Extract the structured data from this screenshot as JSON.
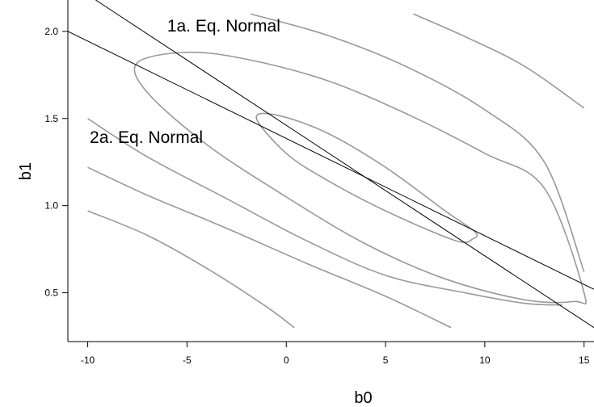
{
  "chart_data": {
    "type": "line",
    "title": "",
    "xlabel": "b0",
    "ylabel": "b1",
    "xlim": [
      -11,
      15.5
    ],
    "ylim": [
      0.22,
      2.18
    ],
    "xticks": [
      -10,
      -5,
      0,
      5,
      10,
      15
    ],
    "yticks": [
      0.5,
      1.0,
      1.5,
      2.0
    ],
    "xtick_labels": [
      "-10",
      "-5",
      "0",
      "5",
      "10",
      "15"
    ],
    "ytick_labels": [
      "0.5",
      "1.0",
      "1.5",
      "2.0"
    ],
    "grid": false,
    "annotations": [
      {
        "text": "1a. Eq. Normal",
        "x": -6.0,
        "y": 2.0
      },
      {
        "text": "2a. Eq. Normal",
        "x": -9.9,
        "y": 1.36
      }
    ],
    "lines": [
      {
        "id": "normal-1a",
        "x": [
          -9.6,
          15.5
        ],
        "y": [
          2.18,
          0.3
        ]
      },
      {
        "id": "normal-2a",
        "x": [
          -11.0,
          15.5
        ],
        "y": [
          2.0,
          0.52
        ]
      }
    ],
    "contours": [
      {
        "id": "inner-ellipse",
        "closed": true,
        "x": [
          -1.5,
          -0.5,
          2.0,
          5.0,
          8.0,
          9.5,
          9.4,
          8.5,
          5.0,
          2.0,
          0.0,
          -1.5
        ],
        "y": [
          1.5,
          1.52,
          1.42,
          1.22,
          0.97,
          0.85,
          0.81,
          0.8,
          0.97,
          1.15,
          1.3,
          1.5
        ]
      },
      {
        "id": "middle-ellipse",
        "closed": true,
        "x": [
          -7.5,
          -5.0,
          -2.0,
          2.0,
          6.0,
          10.0,
          13.0,
          15.0,
          14.5,
          12.0,
          8.0,
          4.0,
          0.0,
          -4.0,
          -7.0,
          -7.5
        ],
        "y": [
          1.82,
          1.88,
          1.84,
          1.72,
          1.53,
          1.3,
          1.1,
          0.5,
          0.45,
          0.46,
          0.58,
          0.78,
          1.05,
          1.35,
          1.65,
          1.82
        ]
      },
      {
        "id": "upper-right-curve",
        "closed": false,
        "x": [
          -1.8,
          2.0,
          6.0,
          10.0,
          13.0,
          15.0
        ],
        "y": [
          2.1,
          1.98,
          1.8,
          1.55,
          1.25,
          0.62
        ]
      },
      {
        "id": "top-right-curve",
        "closed": false,
        "x": [
          6.4,
          9.0,
          12.0,
          15.0
        ],
        "y": [
          2.1,
          1.97,
          1.8,
          1.56
        ]
      },
      {
        "id": "lower-left-curve",
        "closed": false,
        "x": [
          -10.0,
          -7.0,
          -3.0,
          1.0,
          5.0,
          9.0,
          12.0,
          13.9
        ],
        "y": [
          1.5,
          1.28,
          1.04,
          0.8,
          0.6,
          0.5,
          0.44,
          0.43
        ]
      },
      {
        "id": "bottom-left-curve",
        "closed": false,
        "x": [
          -10.0,
          -7.0,
          -3.0,
          1.0,
          5.0,
          8.3
        ],
        "y": [
          1.22,
          1.06,
          0.87,
          0.67,
          0.48,
          0.3
        ]
      },
      {
        "id": "far-bottom-curve",
        "closed": false,
        "x": [
          -10.0,
          -7.0,
          -4.0,
          -1.0,
          0.4
        ],
        "y": [
          0.97,
          0.83,
          0.64,
          0.42,
          0.3
        ]
      }
    ]
  }
}
